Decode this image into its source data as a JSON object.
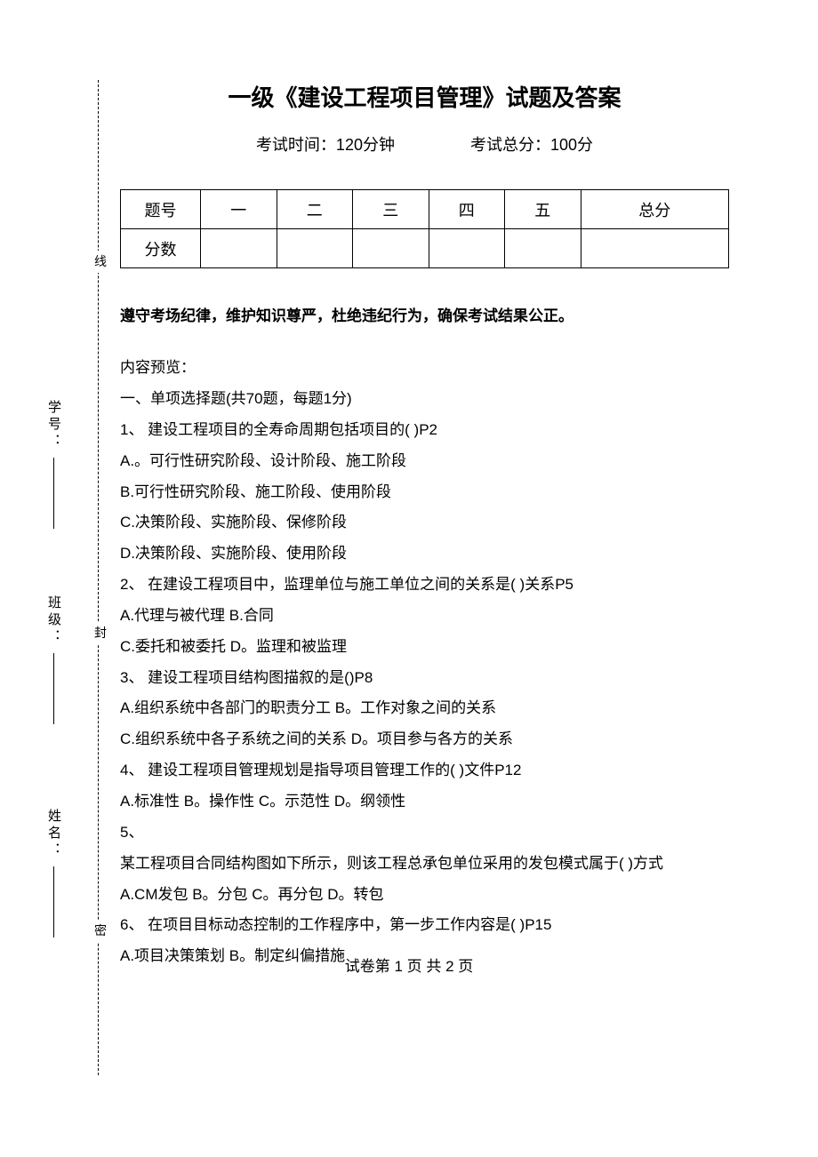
{
  "title": "一级《建设工程项目管理》试题及答案",
  "meta": {
    "duration_label": "考试时间：120分钟",
    "total_label": "考试总分：100分"
  },
  "score_table": {
    "row1": [
      "题号",
      "一",
      "二",
      "三",
      "四",
      "五",
      "总分"
    ],
    "row2_label": "分数"
  },
  "instruction": "遵守考场纪律，维护知识尊严，杜绝违纪行为，确保考试结果公正。",
  "preview_label": "内容预览：",
  "section1_title": "一、单项选择题(共70题，每题1分)",
  "questions": [
    "1、 建设工程项目的全寿命周期包括项目的( )P2",
    "A.。可行性研究阶段、设计阶段、施工阶段",
    "B.可行性研究阶段、施工阶段、使用阶段",
    "C.决策阶段、实施阶段、保修阶段",
    "D.决策阶段、实施阶段、使用阶段",
    "2、 在建设工程项目中，监理单位与施工单位之间的关系是( )关系P5",
    "A.代理与被代理 B.合同",
    "C.委托和被委托 D。监理和被监理",
    "3、 建设工程项目结构图描叙的是()P8",
    "A.组织系统中各部门的职责分工 B。工作对象之间的关系",
    "C.组织系统中各子系统之间的关系 D。项目参与各方的关系",
    "4、 建设工程项目管理规划是指导项目管理工作的( )文件P12",
    "A.标准性 B。操作性 C。示范性 D。纲领性",
    "5、",
    "某工程项目合同结构图如下所示，则该工程总承包单位采用的发包模式属于( )方式",
    "A.CM发包 B。分包 C。再分包 D。转包",
    "6、 在项目目标动态控制的工作程序中，第一步工作内容是( )P15",
    "A.项目决策策划 B。制定纠偏措施"
  ],
  "footer": "试卷第 1 页 共 2 页",
  "sidebar": {
    "xian": "线",
    "feng": "封",
    "mi": "密",
    "xuehao": "学号：",
    "banji": "班级：",
    "xingming": "姓名："
  }
}
